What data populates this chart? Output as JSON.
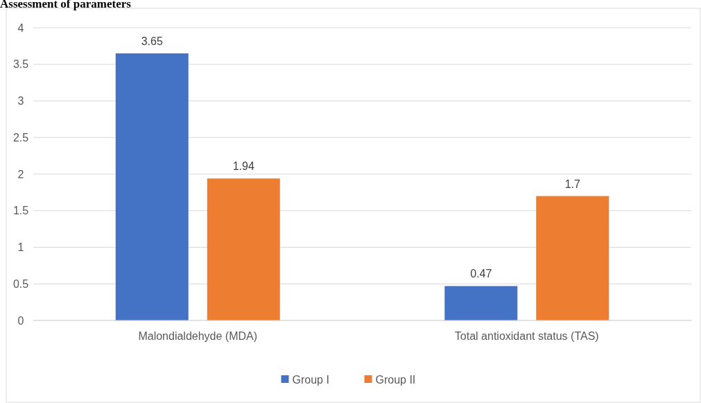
{
  "chart_data": {
    "type": "bar",
    "title": "Assessment of parameters",
    "categories": [
      "Malondialdehyde (MDA)",
      "Total antioxidant status (TAS)"
    ],
    "series": [
      {
        "name": "Group I",
        "color": "#4472c4",
        "values": [
          3.65,
          0.47
        ]
      },
      {
        "name": "Group II",
        "color": "#ed7d31",
        "values": [
          1.94,
          1.7
        ]
      }
    ],
    "ylim": [
      0,
      4
    ],
    "yticks": [
      0,
      0.5,
      1,
      1.5,
      2,
      2.5,
      3,
      3.5,
      4
    ],
    "grid": "y",
    "legend": "bottom",
    "data_labels": true
  }
}
